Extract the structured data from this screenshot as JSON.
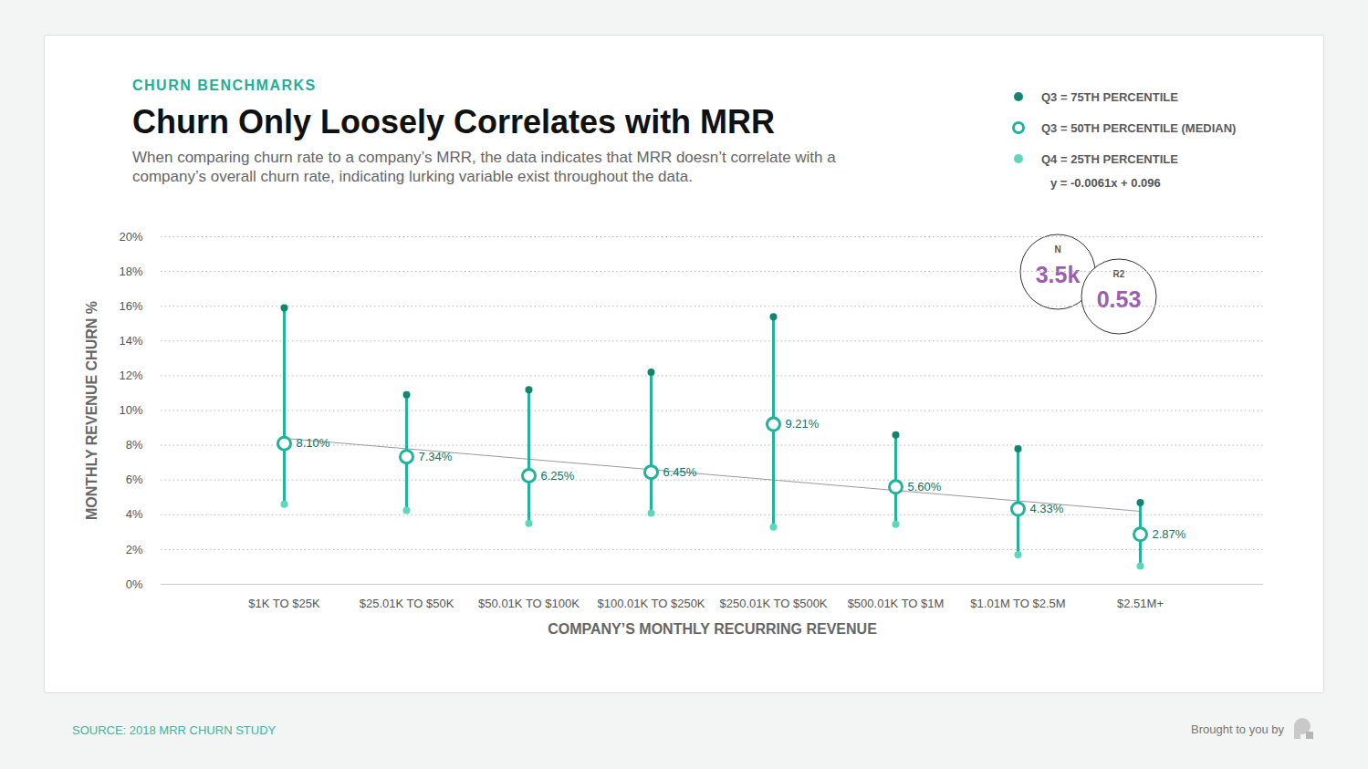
{
  "chart_data": {
    "type": "range",
    "kicker": "CHURN BENCHMARKS",
    "title": "Churn Only Loosely Correlates with MRR",
    "subtitle": "When comparing churn rate to a company’s MRR, the data indicates that MRR doesn’t correlate with a company’s overall churn rate, indicating lurking variable exist throughout the data.",
    "x_label": "COMPANY’S MONTHLY RECURRING REVENUE",
    "y_label": "MONTHLY REVENUE CHURN %",
    "categories": [
      "$1K TO $25K",
      "$25.01K TO $50K",
      "$50.01K TO $100K",
      "$100.01K TO $250K",
      "$250.01K TO $500K",
      "$500.01K TO $1M",
      "$1.01M TO $2.5M",
      "$2.51M+"
    ],
    "color": "#22b39b",
    "series": [
      {
        "name": "Q3 = 75TH PERCENTILE",
        "color": "#13856f",
        "marker": "dot",
        "values": [
          15.9,
          10.9,
          11.2,
          12.2,
          15.4,
          8.6,
          7.8,
          4.7
        ]
      },
      {
        "name": "Q3 = 50TH PERCENTILE (MEDIAN)",
        "color": "#1fb39b",
        "marker": "hollow",
        "data_labels": true,
        "values": [
          8.1,
          7.34,
          6.25,
          6.45,
          9.21,
          5.6,
          4.33,
          2.87
        ],
        "value_labels": [
          "8.10%",
          "7.34%",
          "6.25%",
          "6.45%",
          "9.21%",
          "5.60%",
          "4.33%",
          "2.87%"
        ]
      },
      {
        "name": "Q4 = 25TH PERCENTILE",
        "color": "#5ed6ba",
        "marker": "dot",
        "values": [
          4.6,
          4.25,
          3.5,
          4.1,
          3.3,
          3.45,
          1.7,
          1.05
        ]
      }
    ],
    "trendline": {
      "label": "y = -0.0061x + 0.096",
      "color": "#9a9a9a",
      "line_style": "solid",
      "values": [
        8.4,
        7.8,
        7.2,
        6.6,
        6.0,
        5.4,
        4.8,
        4.2
      ]
    },
    "stats": [
      {
        "name": "N",
        "value": 3500,
        "label": "3.5k"
      },
      {
        "name": "R2",
        "value": 0.53
      }
    ],
    "ylim": [
      0,
      20
    ],
    "yticks": [
      {
        "value": 0,
        "label": "0%"
      },
      {
        "value": 2,
        "label": "2%"
      },
      {
        "value": 4,
        "label": "4%"
      },
      {
        "value": 6,
        "label": "6%"
      },
      {
        "value": 8,
        "label": "8%"
      },
      {
        "value": 10,
        "label": "10%"
      },
      {
        "value": 12,
        "label": "12%"
      },
      {
        "value": 14,
        "label": "14%"
      },
      {
        "value": 16,
        "label": "16%"
      },
      {
        "value": 18,
        "label": "18%"
      },
      {
        "value": 20,
        "label": "20%"
      }
    ],
    "grid": true,
    "legend": "top-right",
    "source": "SOURCE: 2018 MRR CHURN STUDY",
    "credit": "Brought to you by"
  }
}
